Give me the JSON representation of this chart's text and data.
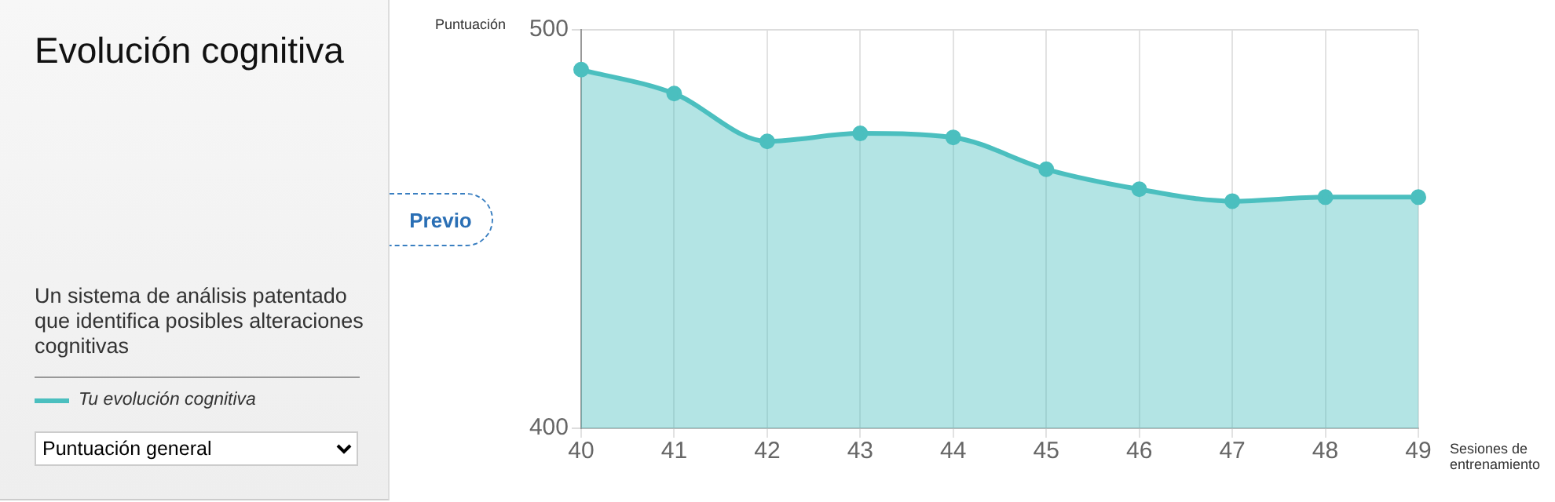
{
  "chart_data": {
    "type": "area",
    "title": "Evolución cognitiva",
    "subtitle": "Un sistema de análisis patentado que identifica posibles alteraciones cognitivas",
    "xlabel": "Sesiones de entrenamiento",
    "ylabel": "Puntuación",
    "annotations": [
      "Previo",
      "Puntuación general"
    ],
    "categories": [
      "40",
      "41",
      "42",
      "43",
      "44",
      "45",
      "46",
      "47",
      "48",
      "49"
    ],
    "series": [
      {
        "name": "Tu evolución cognitiva",
        "color": "#4bbfbf",
        "values": [
          490,
          484,
          472,
          474,
          473,
          465,
          460,
          457,
          458,
          458
        ]
      }
    ],
    "ylim": [
      400,
      500
    ],
    "yticks": [
      400,
      500
    ],
    "grid": true,
    "legend": "left",
    "marker": "circle",
    "line_style": "solid"
  }
}
